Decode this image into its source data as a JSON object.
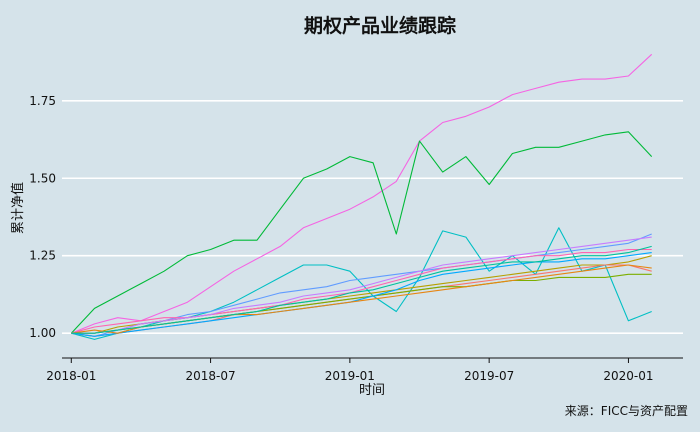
{
  "chart_data": {
    "type": "line",
    "title": "期权产品业绩跟踪",
    "xlabel": "时间",
    "ylabel": "累计净值",
    "caption": "来源：FICC与资产配置",
    "x_ticks": [
      "2018-01",
      "2018-07",
      "2019-01",
      "2019-07",
      "2020-01"
    ],
    "y_ticks": [
      1.0,
      1.25,
      1.5,
      1.75
    ],
    "xlim": [
      "2017-12",
      "2020-03"
    ],
    "ylim": [
      0.92,
      1.93
    ],
    "grid": "horizontal",
    "legend": "none",
    "x": [
      "2018-01",
      "2018-02",
      "2018-03",
      "2018-04",
      "2018-05",
      "2018-06",
      "2018-07",
      "2018-08",
      "2018-09",
      "2018-10",
      "2018-11",
      "2018-12",
      "2019-01",
      "2019-02",
      "2019-03",
      "2019-04",
      "2019-05",
      "2019-06",
      "2019-07",
      "2019-08",
      "2019-09",
      "2019-10",
      "2019-11",
      "2019-12",
      "2020-01",
      "2020-02"
    ],
    "series": [
      {
        "color": "#f564e3",
        "values": [
          1.0,
          1.03,
          1.05,
          1.04,
          1.07,
          1.1,
          1.15,
          1.2,
          1.24,
          1.28,
          1.34,
          1.37,
          1.4,
          1.44,
          1.49,
          1.62,
          1.68,
          1.7,
          1.73,
          1.77,
          1.79,
          1.81,
          1.82,
          1.82,
          1.83,
          1.9
        ]
      },
      {
        "color": "#00ba38",
        "values": [
          1.0,
          1.08,
          1.12,
          1.16,
          1.2,
          1.25,
          1.27,
          1.3,
          1.3,
          1.4,
          1.5,
          1.53,
          1.57,
          1.55,
          1.32,
          1.62,
          1.52,
          1.57,
          1.48,
          1.58,
          1.6,
          1.6,
          1.62,
          1.64,
          1.65,
          1.57
        ]
      },
      {
        "color": "#00bfc4",
        "values": [
          1.0,
          0.98,
          1.0,
          1.02,
          1.04,
          1.05,
          1.07,
          1.1,
          1.14,
          1.18,
          1.22,
          1.22,
          1.2,
          1.12,
          1.07,
          1.18,
          1.33,
          1.31,
          1.2,
          1.25,
          1.19,
          1.34,
          1.2,
          1.22,
          1.04,
          1.07
        ]
      },
      {
        "color": "#619cff",
        "values": [
          1.0,
          0.99,
          1.01,
          1.03,
          1.04,
          1.06,
          1.07,
          1.09,
          1.11,
          1.13,
          1.14,
          1.15,
          1.17,
          1.18,
          1.19,
          1.2,
          1.21,
          1.22,
          1.23,
          1.24,
          1.25,
          1.26,
          1.27,
          1.28,
          1.29,
          1.32
        ]
      },
      {
        "color": "#b79f00",
        "values": [
          1.0,
          1.0,
          1.02,
          1.03,
          1.04,
          1.05,
          1.06,
          1.07,
          1.08,
          1.09,
          1.1,
          1.11,
          1.12,
          1.13,
          1.14,
          1.15,
          1.16,
          1.17,
          1.18,
          1.19,
          1.2,
          1.21,
          1.22,
          1.22,
          1.23,
          1.25
        ]
      },
      {
        "color": "#f8766d",
        "values": [
          1.0,
          0.99,
          1.0,
          1.01,
          1.02,
          1.03,
          1.04,
          1.06,
          1.07,
          1.08,
          1.09,
          1.1,
          1.11,
          1.12,
          1.13,
          1.14,
          1.15,
          1.16,
          1.17,
          1.18,
          1.19,
          1.2,
          1.21,
          1.22,
          1.22,
          1.2
        ]
      },
      {
        "color": "#7cae00",
        "values": [
          1.0,
          1.0,
          1.01,
          1.02,
          1.03,
          1.04,
          1.05,
          1.06,
          1.07,
          1.08,
          1.09,
          1.1,
          1.11,
          1.12,
          1.13,
          1.14,
          1.15,
          1.15,
          1.16,
          1.17,
          1.17,
          1.18,
          1.18,
          1.18,
          1.19,
          1.19
        ]
      },
      {
        "color": "#ff64b0",
        "values": [
          1.0,
          1.02,
          1.03,
          1.04,
          1.05,
          1.05,
          1.06,
          1.07,
          1.08,
          1.09,
          1.11,
          1.12,
          1.13,
          1.15,
          1.17,
          1.19,
          1.21,
          1.22,
          1.23,
          1.24,
          1.25,
          1.25,
          1.26,
          1.26,
          1.27,
          1.27
        ]
      },
      {
        "color": "#c77cff",
        "values": [
          1.0,
          1.0,
          1.01,
          1.03,
          1.04,
          1.05,
          1.06,
          1.08,
          1.09,
          1.1,
          1.12,
          1.13,
          1.14,
          1.16,
          1.18,
          1.2,
          1.22,
          1.23,
          1.24,
          1.25,
          1.26,
          1.27,
          1.28,
          1.29,
          1.3,
          1.31
        ]
      },
      {
        "color": "#00a9ff",
        "values": [
          1.0,
          0.99,
          1.0,
          1.01,
          1.02,
          1.03,
          1.04,
          1.05,
          1.06,
          1.07,
          1.08,
          1.09,
          1.1,
          1.12,
          1.14,
          1.17,
          1.19,
          1.2,
          1.21,
          1.22,
          1.23,
          1.23,
          1.24,
          1.24,
          1.25,
          1.26
        ]
      },
      {
        "color": "#e68613",
        "values": [
          1.0,
          1.01,
          1.0,
          1.02,
          1.03,
          1.04,
          1.05,
          1.06,
          1.06,
          1.07,
          1.08,
          1.09,
          1.1,
          1.11,
          1.12,
          1.13,
          1.14,
          1.15,
          1.16,
          1.17,
          1.18,
          1.19,
          1.2,
          1.21,
          1.22,
          1.21
        ]
      },
      {
        "color": "#00c19a",
        "values": [
          1.0,
          1.0,
          1.01,
          1.02,
          1.03,
          1.04,
          1.05,
          1.06,
          1.07,
          1.09,
          1.1,
          1.11,
          1.13,
          1.14,
          1.16,
          1.18,
          1.2,
          1.21,
          1.22,
          1.23,
          1.23,
          1.24,
          1.25,
          1.25,
          1.26,
          1.28
        ]
      }
    ]
  }
}
